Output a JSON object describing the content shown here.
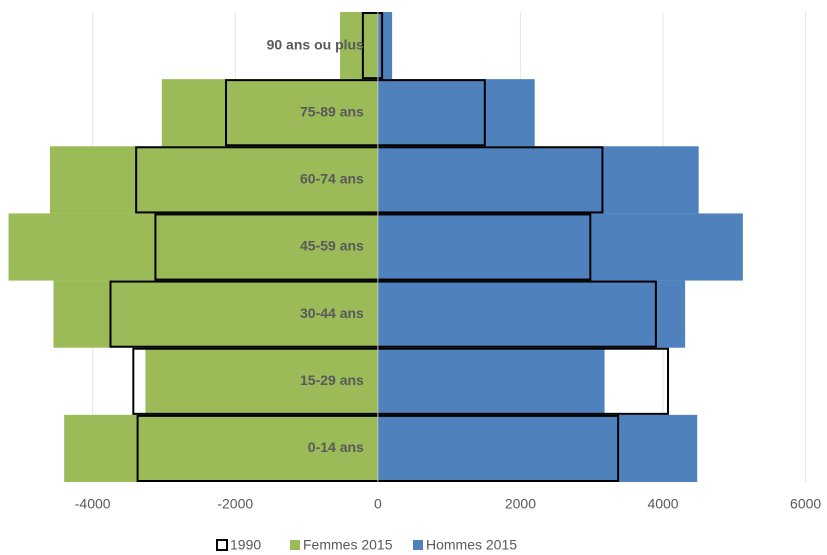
{
  "chart_data": {
    "type": "pyramid",
    "categories": [
      "0-14 ans",
      "15-29 ans",
      "30-44 ans",
      "45-59 ans",
      "60-74 ans",
      "75-89 ans",
      "90 ans ou plus"
    ],
    "series": [
      {
        "name": "1990",
        "color": "#000000",
        "values": [
          [
            -3370,
            3370
          ],
          [
            -3430,
            4070
          ],
          [
            -3750,
            3900
          ],
          [
            -3120,
            2980
          ],
          [
            -3390,
            3150
          ],
          [
            -2130,
            1500
          ],
          [
            -210,
            60
          ]
        ]
      },
      {
        "name": "Femmes 2015",
        "color": "#9bbb59",
        "values": [
          -4400,
          -3260,
          -4550,
          -5180,
          -4600,
          -3030,
          -530
        ]
      },
      {
        "name": "Hommes 2015",
        "color": "#4f81bd",
        "values": [
          4480,
          3180,
          4310,
          5120,
          4500,
          2200,
          200
        ]
      }
    ],
    "xlim": [
      -5300,
      6300
    ],
    "xticks": [
      -4000,
      -2000,
      0,
      2000,
      4000,
      6000
    ],
    "grid": true
  }
}
